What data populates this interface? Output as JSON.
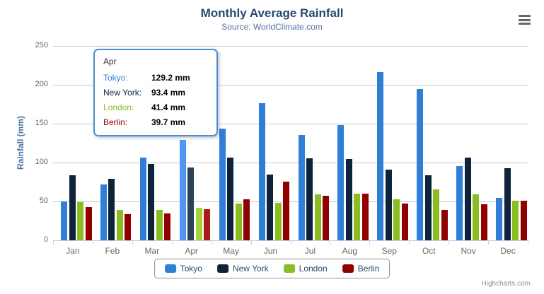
{
  "header": {
    "title": "Monthly Average Rainfall",
    "subtitle": "Source: WorldClimate.com"
  },
  "y_axis": {
    "title": "Rainfall (mm)",
    "ticks": [
      0,
      50,
      100,
      150,
      200,
      250
    ]
  },
  "chart_data": {
    "type": "bar",
    "title": "Monthly Average Rainfall",
    "subtitle": "Source: WorldClimate.com",
    "categories": [
      "Jan",
      "Feb",
      "Mar",
      "Apr",
      "May",
      "Jun",
      "Jul",
      "Aug",
      "Sep",
      "Oct",
      "Nov",
      "Dec"
    ],
    "series": [
      {
        "name": "Tokyo",
        "color": "#2f7ed8",
        "hover_color": "#4e97f1",
        "values": [
          49.9,
          71.5,
          106.4,
          129.2,
          144.0,
          176.0,
          135.6,
          148.5,
          216.4,
          194.1,
          95.6,
          54.4
        ]
      },
      {
        "name": "New York",
        "color": "#0d233a",
        "hover_color": "#2c4259",
        "values": [
          83.6,
          78.8,
          98.5,
          93.4,
          106.0,
          84.5,
          105.0,
          104.3,
          91.2,
          83.5,
          106.6,
          92.3
        ]
      },
      {
        "name": "London",
        "color": "#8bbc21",
        "hover_color": "#a4d336",
        "values": [
          48.9,
          38.8,
          39.3,
          41.4,
          47.0,
          48.3,
          59.0,
          59.6,
          52.4,
          65.2,
          59.3,
          51.2
        ]
      },
      {
        "name": "Berlin",
        "color": "#910000",
        "hover_color": "#ad1a1a",
        "values": [
          42.4,
          33.2,
          34.5,
          39.7,
          52.6,
          75.5,
          57.4,
          60.4,
          47.6,
          39.1,
          46.8,
          51.1
        ]
      }
    ],
    "ylabel": "Rainfall (mm)",
    "ylim": [
      0,
      250
    ],
    "grid": true,
    "legend_position": "bottom",
    "highlighted_category": "Apr",
    "highlighted_index": 3
  },
  "tooltip": {
    "header": "Apr",
    "border_color": "#4a8fd4",
    "rows": [
      {
        "label": "Tokyo:",
        "value": "129.2 mm",
        "color": "#2f7ed8"
      },
      {
        "label": "New York:",
        "value": "93.4 mm",
        "color": "#0d233a"
      },
      {
        "label": "London:",
        "value": "41.4 mm",
        "color": "#8bbc21"
      },
      {
        "label": "Berlin:",
        "value": "39.7 mm",
        "color": "#910000"
      }
    ]
  },
  "legend": {
    "items": [
      {
        "label": "Tokyo",
        "color": "#2f7ed8"
      },
      {
        "label": "New York",
        "color": "#0d233a"
      },
      {
        "label": "London",
        "color": "#8bbc21"
      },
      {
        "label": "Berlin",
        "color": "#910000"
      }
    ]
  },
  "credits": "Highcharts.com"
}
